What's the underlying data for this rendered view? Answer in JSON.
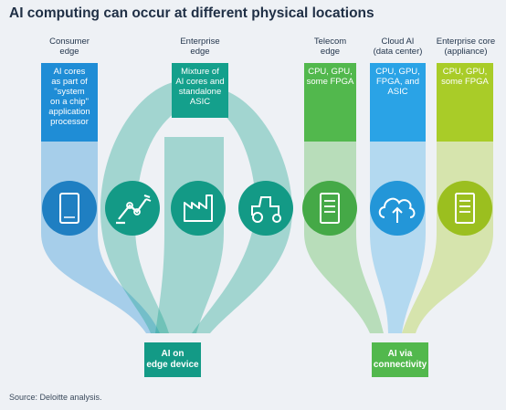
{
  "title": "AI computing can occur at different physical locations",
  "columns": [
    {
      "header": "Consumer\nedge",
      "description": "AI cores\nas part of\n\"system\non a chip\"\napplication\nprocessor",
      "icon": "smartphone-icon",
      "color": "#1f8dd6"
    },
    {
      "header": "Enterprise\nedge",
      "description": "Mixture of\nAI cores and\nstandalone\nASIC",
      "icons": [
        "robot-arm-icon",
        "factory-icon",
        "tractor-icon"
      ],
      "color": "#14a08c"
    },
    {
      "header": "Telecom\nedge",
      "description": "CPU, GPU,\nsome FPGA",
      "icon": "server-icon",
      "color": "#52b84d"
    },
    {
      "header": "Cloud AI\n(data center)",
      "description": "CPU, GPU,\nFPGA, and\nASIC",
      "icon": "cloud-upload-icon",
      "color": "#2aa3e6"
    },
    {
      "header": "Enterprise core\n(appliance)",
      "description": "CPU, GPU,\nsome FPGA",
      "icon": "server-icon",
      "color": "#a9cc28"
    }
  ],
  "bottom_boxes": [
    {
      "label": "AI on\nedge device",
      "color": "#139a86"
    },
    {
      "label": "AI via\nconnectivity",
      "color": "#52b84d"
    }
  ],
  "source": "Source: Deloitte analysis."
}
